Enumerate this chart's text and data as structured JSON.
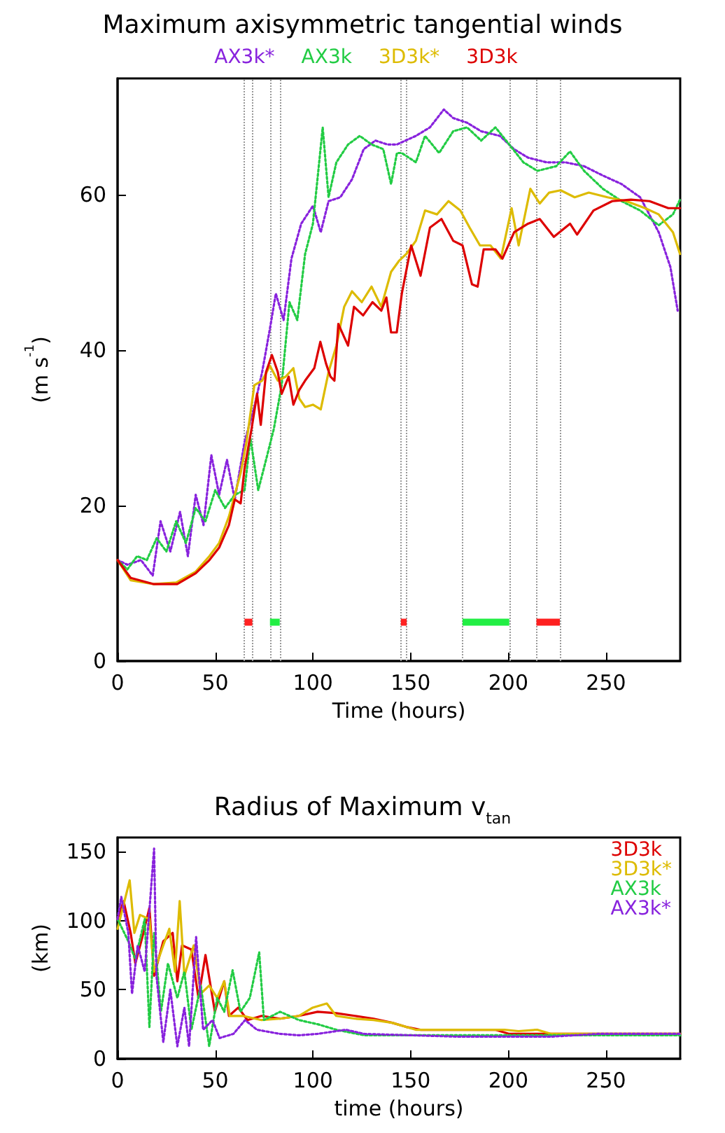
{
  "chart_data": [
    {
      "type": "line",
      "title": "Maximum axisymmetric tangential winds",
      "xlabel": "Time (hours)",
      "ylabel": "(m s$^{-1}$)",
      "xlim": [
        0,
        288
      ],
      "xticks": [
        0,
        50,
        100,
        150,
        200,
        250
      ],
      "ylim": [
        0,
        75
      ],
      "yticks": [
        0,
        20,
        40,
        60
      ],
      "legend": "top",
      "series": [
        {
          "name": "AX3k*",
          "color": "#8822dd",
          "line_style": "dotted",
          "x": [
            0,
            5,
            12,
            18,
            22,
            27,
            32,
            36,
            40,
            44,
            48,
            52,
            56,
            60,
            65,
            70,
            74,
            78,
            81,
            85,
            89,
            94,
            100,
            104,
            108,
            114,
            120,
            126,
            132,
            138,
            143,
            152.7,
            159.9,
            167,
            171.8,
            178.9,
            186.1,
            195.7,
            202.9,
            210.1,
            219.6,
            229.2,
            238.8,
            248.4,
            258,
            267.5,
            277,
            283,
            286.7
          ],
          "values": [
            13.0,
            12.4,
            13.0,
            11.0,
            18.0,
            14.1,
            19.2,
            13.5,
            21.4,
            17.5,
            26.5,
            21.4,
            25.9,
            20.8,
            28.2,
            32.7,
            37.2,
            42.8,
            47.3,
            43.9,
            51.8,
            56.3,
            58.6,
            55.2,
            59.2,
            59.7,
            62.0,
            65.9,
            67.0,
            66.5,
            66.5,
            67.6,
            68.7,
            71.0,
            69.9,
            69.3,
            68.2,
            67.6,
            65.9,
            64.8,
            64.2,
            64.2,
            63.7,
            62.5,
            61.4,
            59.7,
            55.2,
            50.7,
            45.1
          ]
        },
        {
          "name": "AX3k",
          "color": "#22cc44",
          "line_style": "dotted",
          "x": [
            0,
            5,
            10,
            15,
            20,
            25,
            30,
            35,
            40,
            45,
            50,
            55,
            60,
            65,
            68,
            72,
            76,
            80,
            84,
            88,
            92,
            96,
            100,
            103,
            105,
            108,
            112,
            118,
            124,
            130,
            136,
            140,
            143,
            145.5,
            152.7,
            157.4,
            164.6,
            171.8,
            178.9,
            186.1,
            193.4,
            200.5,
            207.7,
            214.9,
            224.5,
            231.6,
            238.8,
            248.4,
            258,
            267.5,
            277,
            284.3,
            287.9
          ],
          "values": [
            13.0,
            11.8,
            13.5,
            13.0,
            15.8,
            14.1,
            18.0,
            15.2,
            19.7,
            18.0,
            22.0,
            19.7,
            21.4,
            22.0,
            28.7,
            22.0,
            25.9,
            29.9,
            35.5,
            46.2,
            43.9,
            52.4,
            56.3,
            63.7,
            68.7,
            59.7,
            64.2,
            66.5,
            67.6,
            66.5,
            65.9,
            61.4,
            65.4,
            65.4,
            64.2,
            67.6,
            65.4,
            68.2,
            68.7,
            67.0,
            68.7,
            66.5,
            64.2,
            63.1,
            63.7,
            65.6,
            63.1,
            60.8,
            59.2,
            58.0,
            56.1,
            57.5,
            59.4
          ]
        },
        {
          "name": "3D3k*",
          "color": "#ddbb00",
          "line_style": "solid",
          "x": [
            0,
            6.7,
            18.6,
            30,
            40,
            47,
            52,
            57,
            60,
            63,
            66,
            70,
            74,
            78,
            82,
            86,
            90,
            93,
            96,
            100,
            104,
            108,
            112,
            116,
            120,
            125,
            130,
            135,
            140,
            144,
            147.8,
            152.7,
            157.4,
            163.5,
            169.4,
            175.4,
            180.2,
            185.5,
            190.9,
            196.2,
            201.7,
            205.3,
            211.3,
            216.1,
            220.9,
            226.8,
            234,
            241.2,
            250.8,
            260.4,
            270,
            277,
            284.3,
            287.9
          ],
          "values": [
            13.0,
            10.4,
            9.9,
            10.1,
            11.5,
            13.5,
            15.2,
            18.6,
            21.4,
            24.2,
            28.2,
            35.5,
            36.1,
            38.0,
            36.1,
            36.6,
            37.7,
            33.8,
            32.7,
            33.0,
            32.4,
            37.2,
            40.6,
            45.6,
            47.6,
            46.2,
            48.2,
            45.6,
            50.1,
            51.5,
            52.4,
            54.1,
            58.0,
            57.5,
            59.2,
            58.0,
            55.8,
            53.5,
            53.5,
            51.8,
            58.3,
            53.5,
            60.8,
            58.9,
            60.3,
            60.6,
            59.7,
            60.3,
            59.7,
            59.2,
            58.3,
            57.5,
            55.2,
            52.4
          ]
        },
        {
          "name": "3D3k",
          "color": "#dd0000",
          "line_style": "solid",
          "x": [
            0,
            6.7,
            18.6,
            30.5,
            40,
            47,
            52,
            57,
            60,
            63,
            65,
            68.6,
            71.4,
            73.3,
            76,
            79,
            82,
            84,
            87.6,
            90,
            93,
            96,
            100.7,
            103.8,
            106.7,
            109,
            111,
            113,
            116,
            118,
            121,
            125.7,
            130.5,
            135,
            137.6,
            140,
            142.9,
            145.5,
            150.3,
            155.1,
            159.9,
            165.8,
            171.8,
            176.6,
            181.4,
            184.3,
            187.4,
            193.4,
            197,
            203,
            210.1,
            216.1,
            223.3,
            231.6,
            235.2,
            243.6,
            253.2,
            262.8,
            272.3,
            281.9,
            287.9
          ],
          "values": [
            13.0,
            10.7,
            9.9,
            9.9,
            11.3,
            13.0,
            14.6,
            17.5,
            20.8,
            20.3,
            24.8,
            29.9,
            34.4,
            30.4,
            37.2,
            39.4,
            37.2,
            34.4,
            36.6,
            33.0,
            34.9,
            36.1,
            37.7,
            41.1,
            38.3,
            36.6,
            36.1,
            43.4,
            41.7,
            40.6,
            45.6,
            44.5,
            46.2,
            45.1,
            46.8,
            42.3,
            42.3,
            47.3,
            53.5,
            49.6,
            55.8,
            56.9,
            54.1,
            53.5,
            48.5,
            48.2,
            53.0,
            53.0,
            51.8,
            55.2,
            56.3,
            56.9,
            54.6,
            56.3,
            54.9,
            58.0,
            59.2,
            59.4,
            59.2,
            58.3,
            58.3
          ]
        },
        {
          "color": "#ff2222",
          "x": [
            65,
            69
          ],
          "values": [
            5,
            5
          ]
        },
        {
          "color": "#22ee44",
          "x": [
            78,
            83
          ],
          "values": [
            5,
            5
          ]
        },
        {
          "color": "#ff2424",
          "x": [
            145,
            148
          ],
          "values": [
            5,
            5
          ]
        },
        {
          "color": "#22ee44",
          "x": [
            176.6,
            200.5
          ],
          "values": [
            5,
            5
          ]
        },
        {
          "color": "#fe2020",
          "x": [
            214.4,
            226.4
          ],
          "values": [
            5,
            5
          ]
        }
      ],
      "ref_lines": [
        {
          "axis": "x",
          "value": 65,
          "color": "#999999",
          "line_style": "dotted"
        },
        {
          "axis": "x",
          "value": 69,
          "color": "#999999",
          "line_style": "dotted"
        },
        {
          "axis": "x",
          "value": 78,
          "color": "#999999",
          "line_style": "dotted"
        },
        {
          "axis": "x",
          "value": 83,
          "color": "#999999",
          "line_style": "dotted"
        },
        {
          "axis": "x",
          "value": 145,
          "color": "#999999",
          "line_style": "dotted"
        },
        {
          "axis": "x",
          "value": 148,
          "color": "#999999",
          "line_style": "dotted"
        },
        {
          "axis": "x",
          "value": 176.6,
          "color": "#999999",
          "line_style": "dotted"
        },
        {
          "axis": "x",
          "value": 200.5,
          "color": "#999999",
          "line_style": "dotted"
        },
        {
          "axis": "x",
          "value": 214.4,
          "color": "#999999",
          "line_style": "dotted"
        },
        {
          "axis": "x",
          "value": 226.4,
          "color": "#999999",
          "line_style": "dotted"
        }
      ]
    },
    {
      "type": "line",
      "title": "Radius of Maximum v$_{tan}$",
      "xlabel": "time (hours)",
      "ylabel": "(km)",
      "xlim": [
        0,
        288
      ],
      "xticks": [
        0,
        50,
        100,
        150,
        200,
        250
      ],
      "ylim": [
        0,
        160
      ],
      "yticks": [
        0,
        50,
        100,
        150
      ],
      "legend": "top right",
      "series": [
        {
          "name": "3D3k",
          "color": "#dd0000",
          "line_style": "solid",
          "x": [
            0,
            3.1,
            6.7,
            9.1,
            12.7,
            16.3,
            18.7,
            23.4,
            28.2,
            30.6,
            33,
            37.8,
            41.4,
            45,
            49.8,
            54.6,
            57,
            61.8,
            66.5,
            73.7,
            83.2,
            92.8,
            102.4,
            111.9,
            121.5,
            131,
            140.6,
            147.8,
            155,
            174.1,
            193.3,
            200.5,
            222,
            246,
            288
          ],
          "values": [
            101,
            114,
            91,
            69,
            88,
            109,
            60,
            85,
            91,
            56,
            82,
            79,
            44,
            75,
            34,
            56,
            31,
            37,
            28,
            31,
            29,
            31,
            34,
            33,
            31,
            29,
            26,
            23,
            21,
            21,
            21,
            18,
            18,
            18,
            18
          ]
        },
        {
          "name": "3D3k*",
          "color": "#ddbb00",
          "line_style": "solid",
          "x": [
            0,
            6.2,
            8.6,
            11.5,
            16.3,
            18.7,
            23.4,
            26.5,
            29.4,
            31.8,
            34.2,
            39,
            42.6,
            46.9,
            51,
            54.6,
            57.4,
            64.2,
            73.7,
            83.2,
            92.8,
            99.9,
            107.1,
            111.9,
            121.5,
            131,
            140.6,
            152.6,
            174.1,
            198,
            205.2,
            214.8,
            222,
            257.9,
            288
          ],
          "values": [
            94,
            129,
            91,
            104,
            101,
            63,
            82,
            94,
            63,
            114,
            60,
            82,
            47,
            53,
            44,
            56,
            31,
            31,
            28,
            29,
            31,
            37,
            40,
            31,
            29,
            28,
            26,
            21,
            21,
            21,
            20,
            21,
            18,
            18,
            18
          ]
        },
        {
          "name": "AX3k",
          "color": "#22cc44",
          "line_style": "dotted",
          "x": [
            0,
            5.5,
            9.1,
            13.9,
            16.3,
            18.7,
            22.2,
            25.8,
            30.6,
            34.2,
            37.8,
            42.6,
            46.9,
            51,
            54.6,
            58.9,
            62.9,
            67.7,
            72.5,
            74.9,
            83.2,
            92.8,
            102.4,
            111.9,
            126.3,
            150.2,
            198,
            245.9,
            288
          ],
          "values": [
            101,
            85,
            72,
            101,
            23,
            91,
            34,
            69,
            44,
            63,
            21,
            53,
            9,
            44,
            34,
            64,
            34,
            44,
            77,
            28,
            34,
            28,
            25,
            21,
            17,
            17,
            17,
            17,
            17
          ]
        },
        {
          "name": "AX3k*",
          "color": "#8822dd",
          "line_style": "dotted",
          "x": [
            0,
            1.9,
            5.5,
            7.4,
            10.3,
            13.9,
            18.7,
            19.9,
            23.4,
            27,
            30.6,
            34.2,
            36.6,
            40.2,
            43.8,
            48.6,
            52.2,
            59.3,
            65.3,
            71.3,
            83.2,
            92.8,
            102.4,
            116.8,
            126.3,
            150.2,
            174.1,
            222,
            245.9,
            288
          ],
          "values": [
            101,
            117,
            91,
            47,
            82,
            63,
            152,
            60,
            12,
            50,
            9,
            37,
            9,
            88,
            21,
            28,
            15,
            18,
            28,
            21,
            18,
            17,
            18,
            21,
            18,
            17,
            16,
            16,
            18,
            18
          ]
        }
      ]
    }
  ]
}
